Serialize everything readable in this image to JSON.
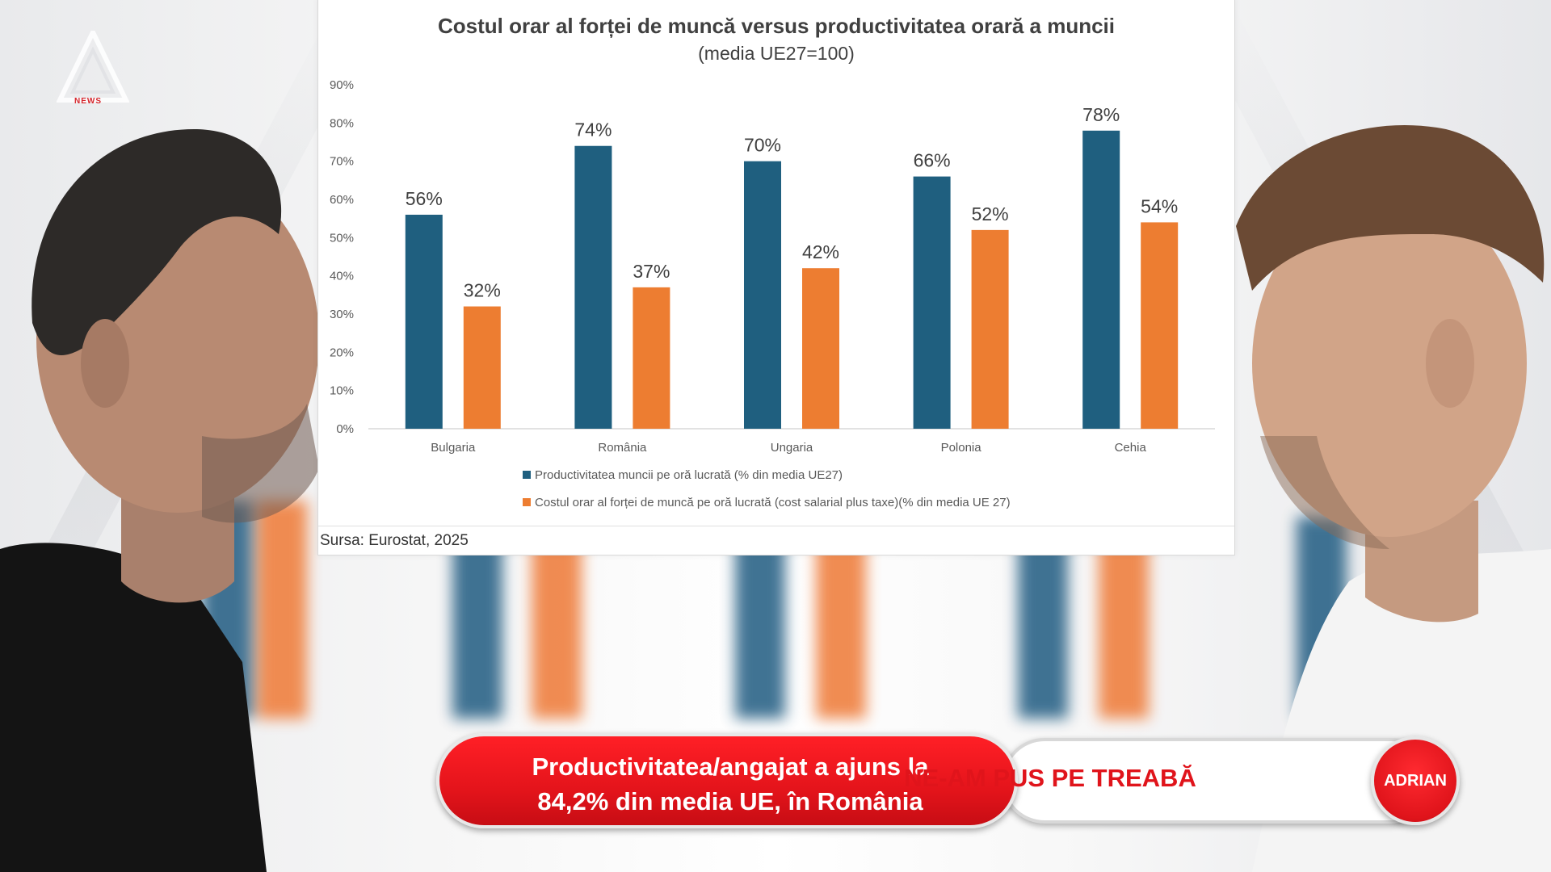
{
  "chart_data": {
    "type": "bar",
    "title": "Costul orar al forței de muncă versus productivitatea orară a muncii",
    "subtitle": "(media UE27=100)",
    "categories": [
      "Bulgaria",
      "România",
      "Ungaria",
      "Polonia",
      "Cehia"
    ],
    "series": [
      {
        "name": "Productivitatea muncii pe oră lucrată (% din media UE27)",
        "color": "#1f5f7f",
        "values": [
          56,
          74,
          70,
          66,
          78
        ],
        "labels": [
          "56%",
          "74%",
          "70%",
          "66%",
          "78%"
        ]
      },
      {
        "name": "Costul orar al forței de muncă pe oră lucrată (cost salarial plus taxe)(% din media UE 27)",
        "color": "#ed7d31",
        "values": [
          32,
          37,
          42,
          52,
          54
        ],
        "labels": [
          "32%",
          "37%",
          "42%",
          "52%",
          "54%"
        ]
      }
    ],
    "ylim": [
      0,
      90
    ],
    "yticks": [
      "0%",
      "10%",
      "20%",
      "30%",
      "40%",
      "50%",
      "60%",
      "70%",
      "80%",
      "90%"
    ],
    "xlabel": "",
    "ylabel": "",
    "legend_position": "bottom"
  },
  "source": "Sursa: Eurostat, 2025",
  "logo": {
    "text": "NEWS",
    "color": "#d6252b"
  },
  "lower_third": {
    "headline_line1": "Productivitatea/angajat a ajuns la",
    "headline_line2": "84,2% din media UE, în România",
    "show_name": "NE-AM PUS PE TREABĂ",
    "host_name": "ADRIAN"
  },
  "colors": {
    "accent_red": "#e0141b",
    "bar_blue": "#1f5f7f",
    "bar_orange": "#ed7d31"
  }
}
